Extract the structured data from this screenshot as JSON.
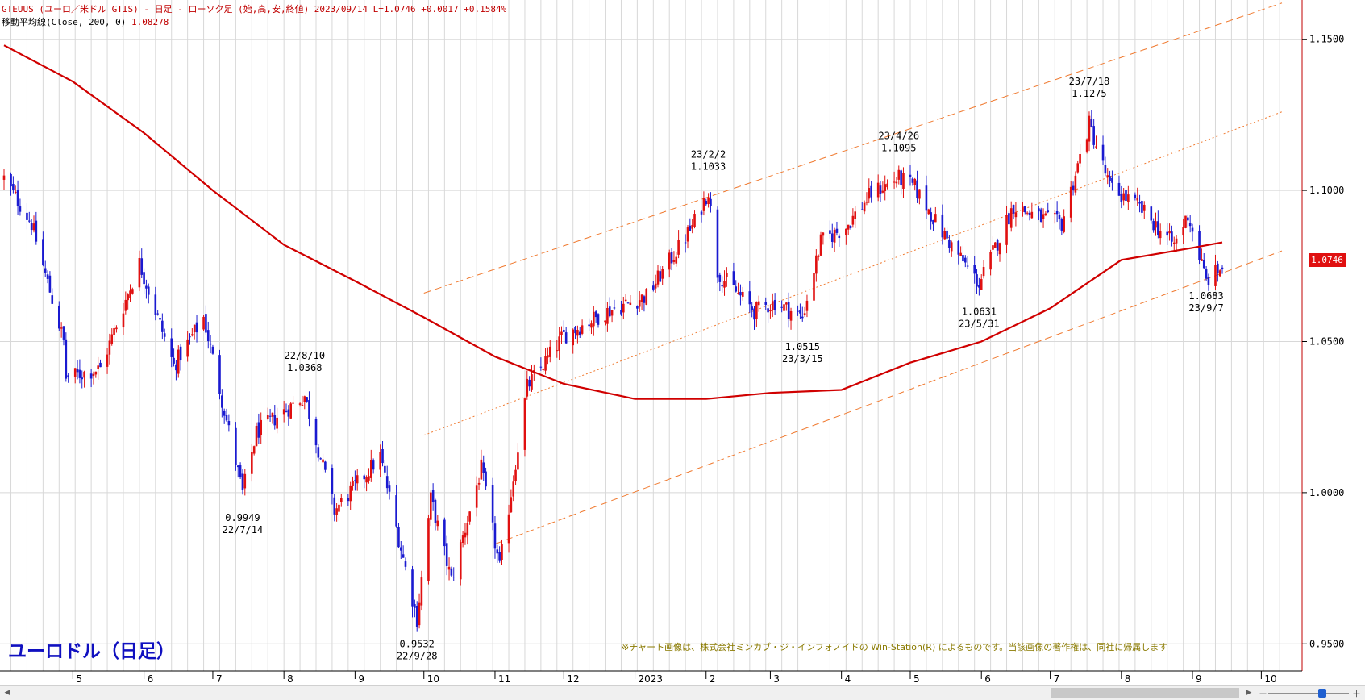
{
  "header": {
    "line1": "GTEUUS (ユーロ／米ドル GTIS) - 日足 - ローソク足 (始,高,安,終値)  2023/09/14 L=1.0746 +0.0017  +0.1584%",
    "line2_label": "移動平均線(Close, 200, 0)",
    "line2_value": "1.08278"
  },
  "title": "ユーロドル（日足）",
  "copyright": "※チャート画像は、株式会社ミンカブ・ジ・インフォノイドの Win-Station(R) によるものです。当該画像の著作権は、同社に帰属します",
  "last_price_label": "1.0746",
  "colors": {
    "up": "#e01010",
    "down": "#1a1ad0",
    "ma": "#d00000",
    "channel": "#f07a30",
    "grid": "#d8d8d8",
    "price_box": "#e01010"
  },
  "chart_data": {
    "type": "candlestick",
    "ylim": [
      0.941,
      1.163
    ],
    "y_ticks": [
      0.95,
      1.0,
      1.05,
      1.1,
      1.15
    ],
    "y_tick_labels": [
      "0.9500",
      "1.0000",
      "1.0500",
      "1.1000",
      "1.1500"
    ],
    "x_labels": [
      "5",
      "6",
      "7",
      "8",
      "9",
      "10",
      "11",
      "12",
      "2023",
      "2",
      "3",
      "4",
      "5",
      "6",
      "7",
      "8",
      "9",
      "10"
    ],
    "grid": true,
    "price_anchors": [
      {
        "date": "2022-04-01",
        "close": 1.104
      },
      {
        "date": "2022-04-13",
        "close": 1.089
      },
      {
        "date": "2022-04-27",
        "close": 1.05
      },
      {
        "date": "2022-04-28",
        "close": 1.038
      },
      {
        "date": "2022-05-13",
        "close": 1.041
      },
      {
        "date": "2022-05-30",
        "close": 1.076
      },
      {
        "date": "2022-06-14",
        "close": 1.042
      },
      {
        "date": "2022-06-27",
        "close": 1.058
      },
      {
        "date": "2022-07-14",
        "close": 1.0
      },
      {
        "date": "2022-07-20",
        "close": 1.02
      },
      {
        "date": "2022-08-10",
        "close": 1.032
      },
      {
        "date": "2022-08-23",
        "close": 0.994
      },
      {
        "date": "2022-09-12",
        "close": 1.012
      },
      {
        "date": "2022-09-28",
        "close": 0.958
      },
      {
        "date": "2022-10-04",
        "close": 0.998
      },
      {
        "date": "2022-10-13",
        "close": 0.971
      },
      {
        "date": "2022-10-26",
        "close": 1.008
      },
      {
        "date": "2022-11-03",
        "close": 0.975
      },
      {
        "date": "2022-11-15",
        "close": 1.035
      },
      {
        "date": "2022-12-01",
        "close": 1.052
      },
      {
        "date": "2022-12-20",
        "close": 1.06
      },
      {
        "date": "2023-01-06",
        "close": 1.065
      },
      {
        "date": "2023-01-26",
        "close": 1.088
      },
      {
        "date": "2023-02-02",
        "close": 1.1
      },
      {
        "date": "2023-02-06",
        "close": 1.073
      },
      {
        "date": "2023-02-22",
        "close": 1.06
      },
      {
        "date": "2023-03-03",
        "close": 1.063
      },
      {
        "date": "2023-03-15",
        "close": 1.058
      },
      {
        "date": "2023-03-23",
        "close": 1.083
      },
      {
        "date": "2023-04-03",
        "close": 1.088
      },
      {
        "date": "2023-04-14",
        "close": 1.099
      },
      {
        "date": "2023-04-26",
        "close": 1.104
      },
      {
        "date": "2023-05-03",
        "close": 1.101
      },
      {
        "date": "2023-05-15",
        "close": 1.086
      },
      {
        "date": "2023-05-31",
        "close": 1.069
      },
      {
        "date": "2023-06-15",
        "close": 1.095
      },
      {
        "date": "2023-06-26",
        "close": 1.091
      },
      {
        "date": "2023-07-06",
        "close": 1.089
      },
      {
        "date": "2023-07-18",
        "close": 1.122
      },
      {
        "date": "2023-07-27",
        "close": 1.101
      },
      {
        "date": "2023-08-08",
        "close": 1.095
      },
      {
        "date": "2023-08-24",
        "close": 1.082
      },
      {
        "date": "2023-08-30",
        "close": 1.092
      },
      {
        "date": "2023-09-07",
        "close": 1.07
      },
      {
        "date": "2023-09-14",
        "close": 1.0746
      }
    ],
    "moving_average": {
      "name": "移動平均線(Close, 200, 0)",
      "points": [
        {
          "date": "2022-04-01",
          "value": 1.148
        },
        {
          "date": "2022-05-01",
          "value": 1.136
        },
        {
          "date": "2022-06-01",
          "value": 1.119
        },
        {
          "date": "2022-07-01",
          "value": 1.1
        },
        {
          "date": "2022-08-01",
          "value": 1.082
        },
        {
          "date": "2022-09-01",
          "value": 1.07
        },
        {
          "date": "2022-10-01",
          "value": 1.058
        },
        {
          "date": "2022-11-01",
          "value": 1.045
        },
        {
          "date": "2022-12-01",
          "value": 1.036
        },
        {
          "date": "2023-01-01",
          "value": 1.031
        },
        {
          "date": "2023-02-01",
          "value": 1.031
        },
        {
          "date": "2023-03-01",
          "value": 1.033
        },
        {
          "date": "2023-04-01",
          "value": 1.034
        },
        {
          "date": "2023-05-01",
          "value": 1.043
        },
        {
          "date": "2023-06-01",
          "value": 1.05
        },
        {
          "date": "2023-07-01",
          "value": 1.061
        },
        {
          "date": "2023-08-01",
          "value": 1.077
        },
        {
          "date": "2023-09-01",
          "value": 1.081
        },
        {
          "date": "2023-09-14",
          "value": 1.0828
        }
      ]
    },
    "channel_lines": [
      {
        "style": "dashed",
        "from": {
          "date": "2022-10-01",
          "value": 1.066
        },
        "to": {
          "date": "2023-10-10",
          "value": 1.162
        }
      },
      {
        "style": "dotted",
        "from": {
          "date": "2022-10-01",
          "value": 1.019
        },
        "to": {
          "date": "2023-10-10",
          "value": 1.126
        }
      },
      {
        "style": "dashed",
        "from": {
          "date": "2022-11-01",
          "value": 0.983
        },
        "to": {
          "date": "2023-10-10",
          "value": 1.08
        }
      }
    ],
    "annotations": [
      {
        "date_label": "22/7/14",
        "value_label": "0.9949",
        "position": "below",
        "date": "2022-07-14",
        "price": 0.9949
      },
      {
        "date_label": "22/8/10",
        "value_label": "1.0368",
        "position": "above",
        "date": "2022-08-10",
        "price": 1.0368
      },
      {
        "date_label": "22/9/28",
        "value_label": "0.9532",
        "position": "below",
        "date": "2022-09-28",
        "price": 0.9532
      },
      {
        "date_label": "23/2/2",
        "value_label": "1.1033",
        "position": "above",
        "date": "2023-02-02",
        "price": 1.1033
      },
      {
        "date_label": "23/3/15",
        "value_label": "1.0515",
        "position": "below",
        "date": "2023-03-15",
        "price": 1.0515
      },
      {
        "date_label": "23/4/26",
        "value_label": "1.1095",
        "position": "above",
        "date": "2023-04-26",
        "price": 1.1095
      },
      {
        "date_label": "23/5/31",
        "value_label": "1.0631",
        "position": "below",
        "date": "2023-05-31",
        "price": 1.0631
      },
      {
        "date_label": "23/7/18",
        "value_label": "1.1275",
        "position": "above",
        "date": "2023-07-18",
        "price": 1.1275
      },
      {
        "date_label": "23/9/7",
        "value_label": "1.0683",
        "position": "below",
        "date": "2023-09-07",
        "price": 1.0683
      }
    ]
  }
}
